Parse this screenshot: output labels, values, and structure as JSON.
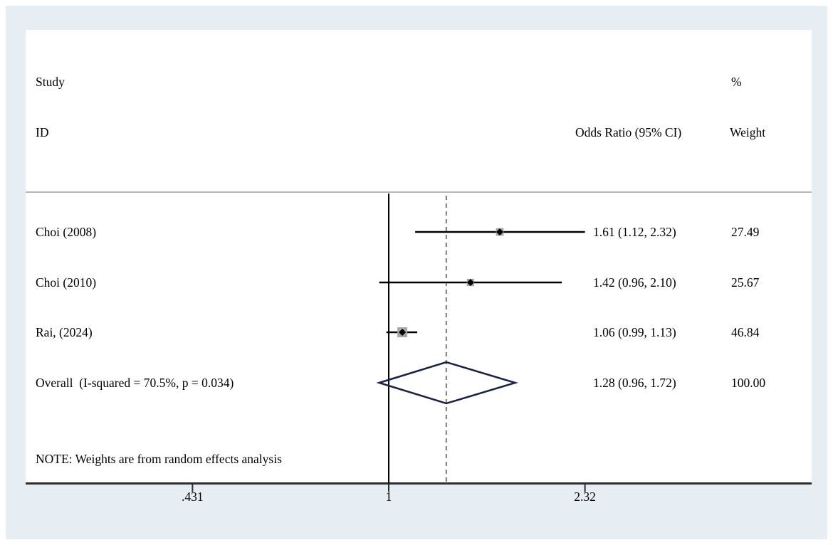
{
  "header": {
    "study_col_line1": "Study",
    "study_col_line2": "ID",
    "or_col": "Odds Ratio (95% CI)",
    "weight_col_line1": "%",
    "weight_col_line2": "Weight"
  },
  "note": "NOTE: Weights are from random effects analysis",
  "colors": {
    "frame_bg": "#e7eef3",
    "panel_bg": "#ffffff",
    "separator": "#b6b6b6",
    "axis": "#2d2d2d",
    "null_line": "#000000",
    "ci_line": "#000000",
    "marker": "#000000",
    "weight_box": "#a7a7a7",
    "overall_dashed": "#7f7872",
    "diamond": "#1b2142"
  },
  "chart_data": {
    "type": "forest",
    "scale": "log",
    "xlabel": "",
    "ylabel": "",
    "x_ticks": [
      0.431,
      1,
      2.32
    ],
    "x_tick_labels": [
      ".431",
      "1",
      "2.32"
    ],
    "null_value": 1,
    "studies": [
      {
        "id": "Choi (2008)",
        "or": 1.61,
        "ci_low": 1.12,
        "ci_high": 2.32,
        "or_label": "1.61 (1.12, 2.32)",
        "weight": 27.49,
        "weight_label": "27.49"
      },
      {
        "id": "Choi (2010)",
        "or": 1.42,
        "ci_low": 0.96,
        "ci_high": 2.1,
        "or_label": "1.42 (0.96, 2.10)",
        "weight": 25.67,
        "weight_label": "25.67"
      },
      {
        "id": "Rai, (2024)",
        "or": 1.06,
        "ci_low": 0.99,
        "ci_high": 1.13,
        "or_label": "1.06 (0.99, 1.13)",
        "weight": 46.84,
        "weight_label": "46.84"
      }
    ],
    "overall": {
      "id": "Overall  (I-squared = 70.5%, p = 0.034)",
      "or": 1.28,
      "ci_low": 0.96,
      "ci_high": 1.72,
      "or_label": "1.28 (0.96, 1.72)",
      "weight": 100.0,
      "weight_label": "100.00"
    }
  }
}
